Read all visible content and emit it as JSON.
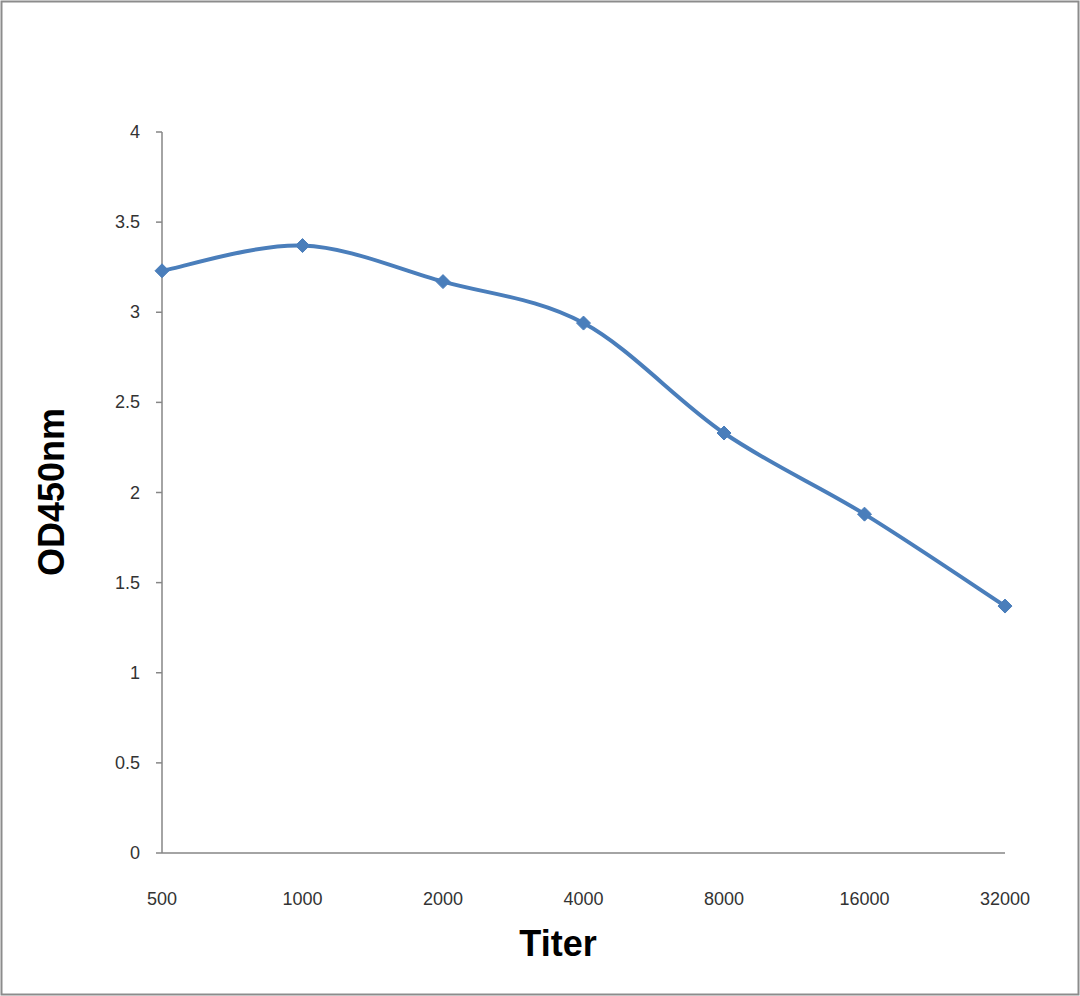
{
  "chart_data": {
    "type": "line",
    "x_label": "Titer",
    "y_label": "OD450nm",
    "categories": [
      "500",
      "1000",
      "2000",
      "4000",
      "8000",
      "16000",
      "32000"
    ],
    "values": [
      3.23,
      3.37,
      3.17,
      2.94,
      2.33,
      1.88,
      1.37
    ],
    "color": "#4a7ebb",
    "marker": "diamond",
    "line_style": "smooth",
    "ylim": [
      0,
      4
    ],
    "yticks": [
      0,
      0.5,
      1,
      1.5,
      2,
      2.5,
      3,
      3.5,
      4
    ],
    "grid": false
  }
}
